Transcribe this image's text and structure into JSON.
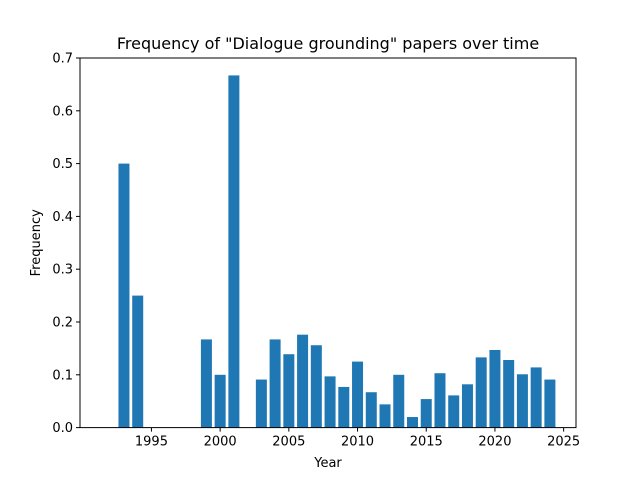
{
  "chart_data": {
    "type": "bar",
    "title": "Frequency of \"Dialogue grounding\" papers over time",
    "xlabel": "Year",
    "ylabel": "Frequency",
    "xlim": [
      1989.8,
      2025.9
    ],
    "ylim": [
      0,
      0.7
    ],
    "xticks": [
      1995,
      2000,
      2005,
      2010,
      2015,
      2020,
      2025
    ],
    "yticks": [
      0.0,
      0.1,
      0.2,
      0.3,
      0.4,
      0.5,
      0.6,
      0.7
    ],
    "bar_width": 0.8,
    "color": "#1f77b4",
    "grid": false,
    "x": [
      1993,
      1994,
      1999,
      2000,
      2001,
      2003,
      2004,
      2005,
      2006,
      2007,
      2008,
      2009,
      2010,
      2011,
      2012,
      2013,
      2014,
      2015,
      2016,
      2017,
      2018,
      2019,
      2020,
      2021,
      2022,
      2023,
      2024
    ],
    "values": [
      0.5,
      0.25,
      0.167,
      0.1,
      0.667,
      0.091,
      0.167,
      0.139,
      0.176,
      0.156,
      0.097,
      0.077,
      0.125,
      0.067,
      0.044,
      0.1,
      0.02,
      0.054,
      0.103,
      0.061,
      0.082,
      0.133,
      0.147,
      0.128,
      0.101,
      0.114,
      0.091
    ]
  }
}
